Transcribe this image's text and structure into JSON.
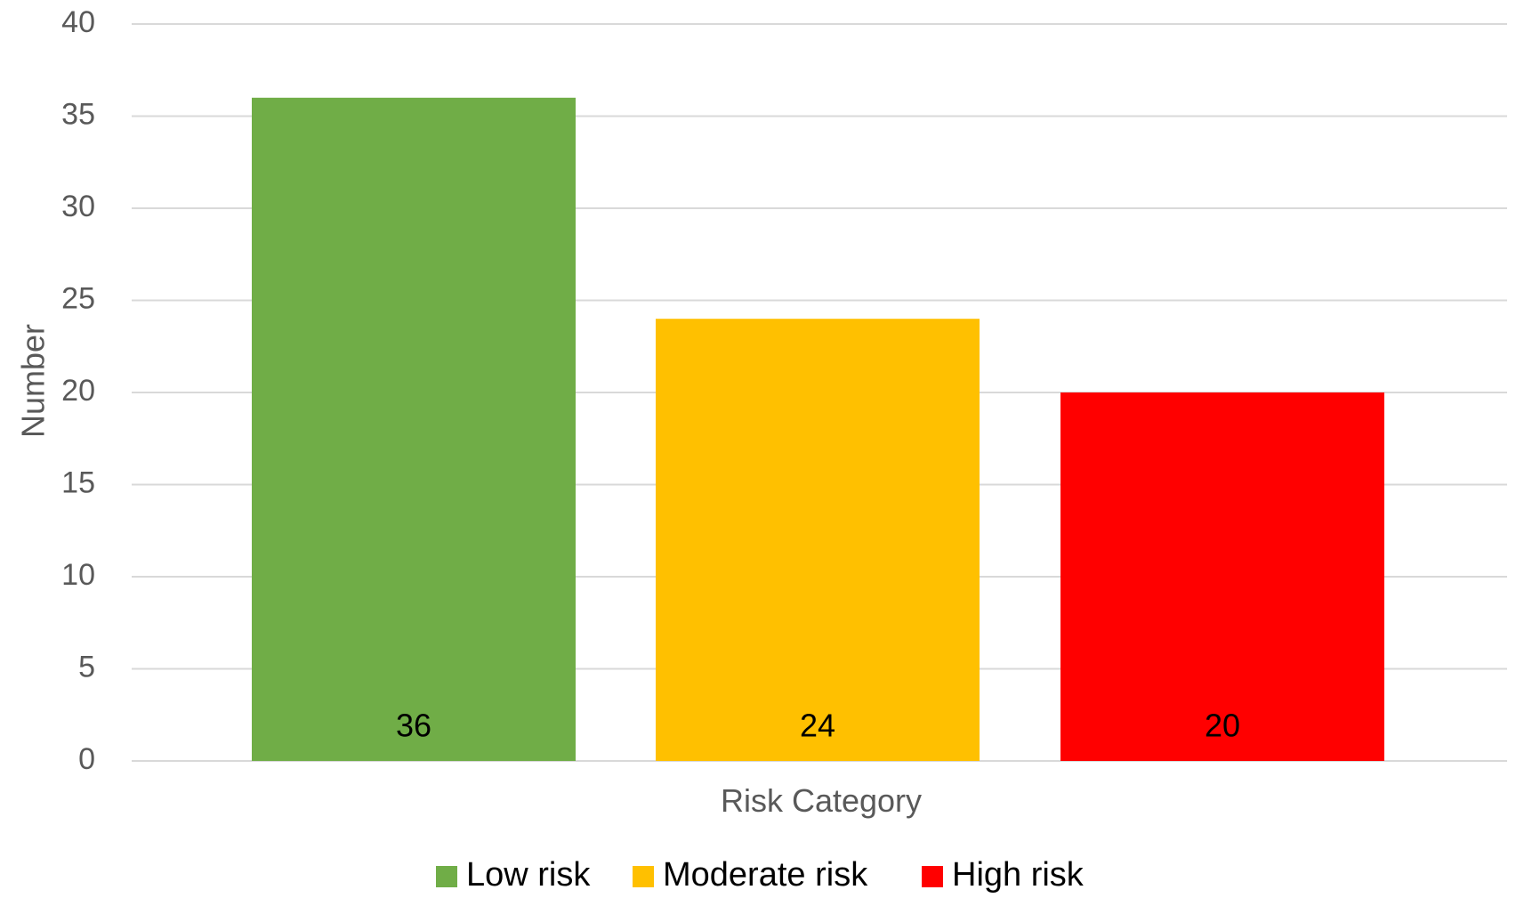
{
  "chart_data": {
    "type": "bar",
    "title": "",
    "xlabel": "Risk Category",
    "ylabel": "Number",
    "ylim": [
      0,
      40
    ],
    "y_ticks": [
      0,
      5,
      10,
      15,
      20,
      25,
      30,
      35,
      40
    ],
    "grid": true,
    "legend_position": "bottom",
    "series": [
      {
        "name": "Low risk",
        "values": [
          36
        ],
        "color": "#70ad47"
      },
      {
        "name": "Moderate risk",
        "values": [
          24
        ],
        "color": "#ffc000"
      },
      {
        "name": "High risk",
        "values": [
          20
        ],
        "color": "#ff0000"
      }
    ]
  }
}
